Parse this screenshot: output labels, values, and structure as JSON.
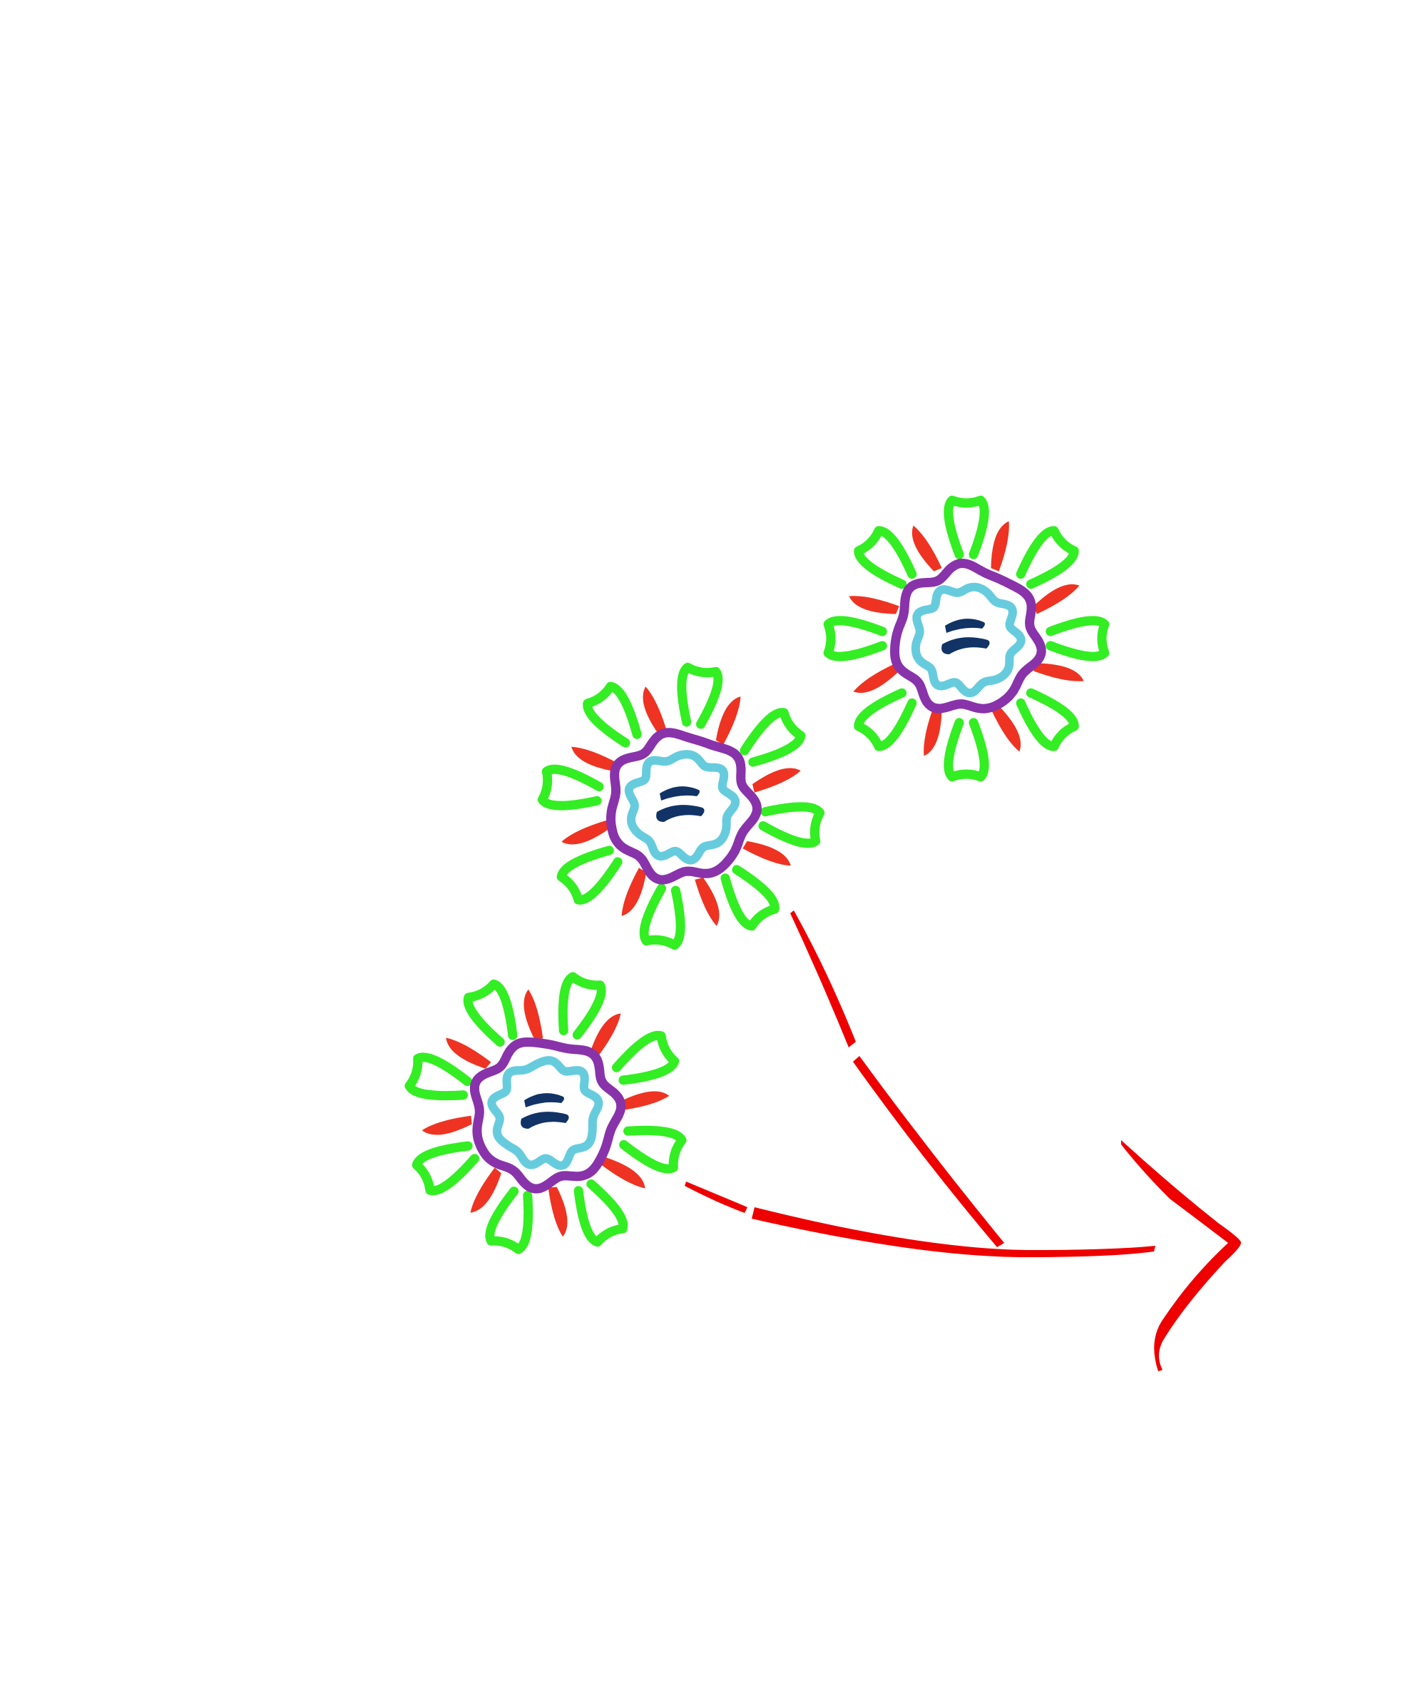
{
  "colors": {
    "background": "#ffffff",
    "spike_green": "#33ee22",
    "spike_red": "#ee3322",
    "envelope_purple": "#8833aa",
    "capsid_blue": "#66ccdd",
    "core_white": "#ffffff",
    "genome_navy": "#113366",
    "arrow_red": "#ee0000"
  },
  "virus_particles": [
    {
      "id": "virus-particle-top-right"
    },
    {
      "id": "virus-particle-middle"
    },
    {
      "id": "virus-particle-bottom-left"
    }
  ],
  "arrows": [
    {
      "id": "arrow-from-middle-particle"
    },
    {
      "id": "arrow-from-bottom-particle"
    }
  ],
  "arrowhead": {
    "id": "merged-arrowhead"
  }
}
